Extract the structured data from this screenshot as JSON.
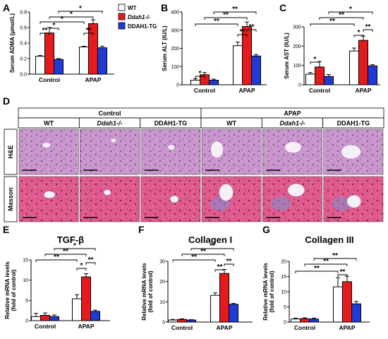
{
  "colors": {
    "wt": "#ffffff",
    "ko": "#e41a1c",
    "tg": "#1f3bd6",
    "he": "#c890c8",
    "masson": "#e05890"
  },
  "legend": [
    "WT",
    "Ddah1-/-",
    "DDAH1-TG"
  ],
  "panel_letters": [
    "A",
    "B",
    "C",
    "D",
    "E",
    "F",
    "G"
  ],
  "histology": {
    "groups": [
      "Control",
      "APAP"
    ],
    "columns": [
      "WT",
      "Ddah1-/-",
      "DDAH1-TG",
      "WT",
      "Ddah1-/-",
      "DDAH1-TG"
    ],
    "rows": [
      "H&E",
      "Masson"
    ]
  },
  "chart_data": [
    {
      "panel": "A",
      "type": "bar",
      "title": "",
      "ylabel": "Serum ADMA (μmol/L)",
      "categories": [
        "Control",
        "APAP"
      ],
      "ylim": [
        0,
        0.8
      ],
      "yticks": [
        "0.0",
        "0.2",
        "0.4",
        "0.6",
        "0.8"
      ],
      "series": [
        {
          "name": "WT",
          "values": [
            0.23,
            0.35
          ]
        },
        {
          "name": "Ddah1-/-",
          "values": [
            0.53,
            0.65
          ]
        },
        {
          "name": "DDAH1-TG",
          "values": [
            0.19,
            0.34
          ]
        }
      ],
      "errors": [
        [
          0.01,
          0.01
        ],
        [
          0.07,
          0.05
        ],
        [
          0.01,
          0.02
        ]
      ],
      "sig": [
        "**",
        "*",
        "*",
        "**",
        "*",
        "*"
      ]
    },
    {
      "panel": "B",
      "type": "bar",
      "title": "",
      "ylabel": "Serum ALT (IU/L)",
      "categories": [
        "Control",
        "APAP"
      ],
      "ylim": [
        0,
        400
      ],
      "yticks": [
        "0",
        "100",
        "200",
        "300",
        "400"
      ],
      "series": [
        {
          "name": "WT",
          "values": [
            25,
            215
          ]
        },
        {
          "name": "Ddah1-/-",
          "values": [
            55,
            320
          ]
        },
        {
          "name": "DDAH1-TG",
          "values": [
            25,
            158
          ]
        }
      ],
      "errors": [
        [
          8,
          20
        ],
        [
          12,
          25
        ],
        [
          6,
          8
        ]
      ],
      "sig": [
        "*",
        "**",
        "**",
        "**",
        "**",
        "**"
      ]
    },
    {
      "panel": "C",
      "type": "bar",
      "title": "",
      "ylabel": "Serum AST (IU/L)",
      "categories": [
        "Control",
        "APAP"
      ],
      "ylim": [
        0,
        300
      ],
      "yticks": [
        "0",
        "100",
        "200",
        "300"
      ],
      "series": [
        {
          "name": "WT",
          "values": [
            55,
            175
          ]
        },
        {
          "name": "Ddah1-/-",
          "values": [
            92,
            230
          ]
        },
        {
          "name": "DDAH1-TG",
          "values": [
            43,
            98
          ]
        }
      ],
      "errors": [
        [
          8,
          15
        ],
        [
          28,
          22
        ],
        [
          10,
          6
        ]
      ],
      "sig": [
        "*",
        "*",
        "**",
        "**",
        "**",
        "*"
      ]
    },
    {
      "panel": "E",
      "type": "bar",
      "title": "TGF-β",
      "ylabel": "Relative mRNA levels (fold of control)",
      "categories": [
        "Control",
        "APAP"
      ],
      "ylim": [
        0,
        15
      ],
      "yticks": [
        "0",
        "5",
        "10",
        "15"
      ],
      "series": [
        {
          "name": "WT",
          "values": [
            1,
            5.4
          ]
        },
        {
          "name": "Ddah1-/-",
          "values": [
            1.3,
            10.8
          ]
        },
        {
          "name": "DDAH1-TG",
          "values": [
            1,
            2.3
          ]
        }
      ],
      "errors": [
        [
          0.8,
          1.0
        ],
        [
          0.6,
          0.8
        ],
        [
          0.4,
          0.3
        ]
      ],
      "sig": [
        "**",
        "*",
        "**",
        "**",
        "*"
      ]
    },
    {
      "panel": "F",
      "type": "bar",
      "title": "Collagen I",
      "ylabel": "Relative mRNA levels (fold of control)",
      "categories": [
        "Control",
        "APAP"
      ],
      "ylim": [
        0,
        30
      ],
      "yticks": [
        "0",
        "10",
        "20",
        "30"
      ],
      "series": [
        {
          "name": "WT",
          "values": [
            1,
            13.2
          ]
        },
        {
          "name": "Ddah1-/-",
          "values": [
            1.3,
            24
          ]
        },
        {
          "name": "DDAH1-TG",
          "values": [
            1,
            8.8
          ]
        }
      ],
      "errors": [
        [
          0.3,
          1.2
        ],
        [
          0.3,
          2.0
        ],
        [
          0.2,
          0.4
        ]
      ],
      "sig": [
        "**",
        "**",
        "**",
        "**",
        "**"
      ]
    },
    {
      "panel": "G",
      "type": "bar",
      "title": "Collagen III",
      "ylabel": "Relative mRNA levels (fold of control)",
      "categories": [
        "Control",
        "APAP"
      ],
      "ylim": [
        0,
        20
      ],
      "yticks": [
        "0",
        "5",
        "10",
        "15",
        "20"
      ],
      "series": [
        {
          "name": "WT",
          "values": [
            1,
            11.6
          ]
        },
        {
          "name": "Ddah1-/-",
          "values": [
            1.1,
            13.3
          ]
        },
        {
          "name": "DDAH1-TG",
          "values": [
            1,
            6
          ]
        }
      ],
      "errors": [
        [
          0.3,
          3.0
        ],
        [
          0.3,
          1.8
        ],
        [
          0.3,
          0.8
        ]
      ],
      "sig": [
        "**",
        "**",
        "**",
        "**"
      ]
    }
  ]
}
